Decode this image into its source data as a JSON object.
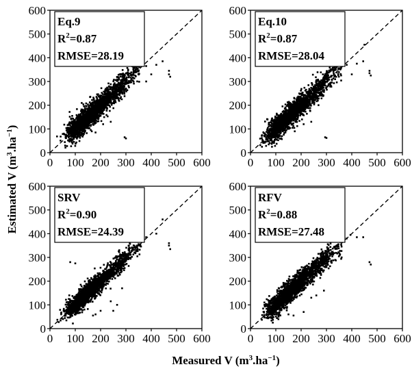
{
  "figure": {
    "xlabel": {
      "prefix": "Measured V (m",
      "sup": "3",
      "mid": ".ha",
      "sup2": "−1",
      "suffix": ")"
    },
    "ylabel": {
      "prefix": "Estimated V (m",
      "sup": "3",
      "mid": ".ha",
      "sup2": "−1",
      "suffix": ")"
    }
  },
  "chart_data": [
    {
      "type": "scatter",
      "title": "Eq.9",
      "r2_label": "R",
      "r2_sup": "2",
      "r2_value": "=0.87",
      "rmse_text": "RMSE=28.19",
      "xlim": [
        0,
        600
      ],
      "ylim": [
        0,
        600
      ],
      "xticks": [
        "0",
        "100",
        "200",
        "300",
        "400",
        "500",
        "600"
      ],
      "yticks": [
        "0",
        "100",
        "200",
        "300",
        "400",
        "500",
        "600"
      ],
      "reference_line": "1:1 dashed",
      "series": [
        {
          "center_slope": 1.0,
          "spread": 24,
          "seed": 11
        }
      ],
      "points": [
        [
          295,
          65
        ],
        [
          300,
          60
        ],
        [
          355,
          410
        ],
        [
          360,
          380
        ],
        [
          380,
          365
        ],
        [
          420,
          370
        ],
        [
          445,
          385
        ],
        [
          470,
          330
        ],
        [
          475,
          320
        ],
        [
          470,
          345
        ],
        [
          400,
          330
        ],
        [
          380,
          300
        ],
        [
          165,
          90
        ],
        [
          180,
          85
        ],
        [
          210,
          120
        ],
        [
          240,
          130
        ],
        [
          60,
          30
        ]
      ]
    },
    {
      "type": "scatter",
      "title": "Eq.10",
      "r2_label": "R",
      "r2_sup": "2",
      "r2_value": "=0.87",
      "rmse_text": "RMSE=28.04",
      "xlim": [
        0,
        600
      ],
      "ylim": [
        0,
        600
      ],
      "xticks": [
        "0",
        "100",
        "200",
        "300",
        "400",
        "500",
        "600"
      ],
      "yticks": [
        "0",
        "100",
        "200",
        "300",
        "400",
        "500",
        "600"
      ],
      "reference_line": "1:1 dashed",
      "series": [
        {
          "center_slope": 1.0,
          "spread": 24,
          "seed": 23
        }
      ],
      "points": [
        [
          295,
          65
        ],
        [
          300,
          62
        ],
        [
          360,
          400
        ],
        [
          365,
          380
        ],
        [
          380,
          370
        ],
        [
          420,
          375
        ],
        [
          445,
          385
        ],
        [
          470,
          335
        ],
        [
          475,
          325
        ],
        [
          470,
          345
        ],
        [
          400,
          330
        ],
        [
          450,
          455
        ],
        [
          175,
          90
        ],
        [
          210,
          120
        ],
        [
          240,
          130
        ]
      ]
    },
    {
      "type": "scatter",
      "title": "SRV",
      "r2_label": "R",
      "r2_sup": "2",
      "r2_value": "=0.90",
      "rmse_text": "RMSE=24.39",
      "xlim": [
        0,
        600
      ],
      "ylim": [
        0,
        600
      ],
      "xticks": [
        "0",
        "100",
        "200",
        "300",
        "400",
        "500",
        "600"
      ],
      "yticks": [
        "0",
        "100",
        "200",
        "300",
        "400",
        "500",
        "600"
      ],
      "reference_line": "1:1 dashed",
      "series": [
        {
          "center_slope": 1.0,
          "spread": 20,
          "seed": 37
        }
      ],
      "points": [
        [
          80,
          280
        ],
        [
          100,
          275
        ],
        [
          170,
          55
        ],
        [
          180,
          60
        ],
        [
          200,
          75
        ],
        [
          240,
          115
        ],
        [
          250,
          75
        ],
        [
          265,
          100
        ],
        [
          285,
          170
        ],
        [
          360,
          400
        ],
        [
          380,
          385
        ],
        [
          420,
          400
        ],
        [
          445,
          460
        ],
        [
          470,
          350
        ],
        [
          475,
          335
        ],
        [
          470,
          360
        ]
      ]
    },
    {
      "type": "scatter",
      "title": "RFV",
      "r2_label": "R",
      "r2_sup": "2",
      "r2_value": "=0.88",
      "rmse_text": "RMSE=27.48",
      "xlim": [
        0,
        600
      ],
      "ylim": [
        0,
        600
      ],
      "xticks": [
        "0",
        "100",
        "200",
        "300",
        "400",
        "500",
        "600"
      ],
      "yticks": [
        "0",
        "100",
        "200",
        "300",
        "400",
        "500",
        "600"
      ],
      "reference_line": "1:1 dashed",
      "series": [
        {
          "center_slope": 1.0,
          "spread": 22,
          "seed": 51
        }
      ],
      "points": [
        [
          55,
          100
        ],
        [
          70,
          120
        ],
        [
          150,
          60
        ],
        [
          170,
          55
        ],
        [
          210,
          70
        ],
        [
          240,
          130
        ],
        [
          260,
          140
        ],
        [
          290,
          160
        ],
        [
          380,
          380
        ],
        [
          395,
          395
        ],
        [
          420,
          385
        ],
        [
          445,
          385
        ],
        [
          470,
          280
        ],
        [
          475,
          270
        ],
        [
          360,
          300
        ]
      ]
    }
  ]
}
